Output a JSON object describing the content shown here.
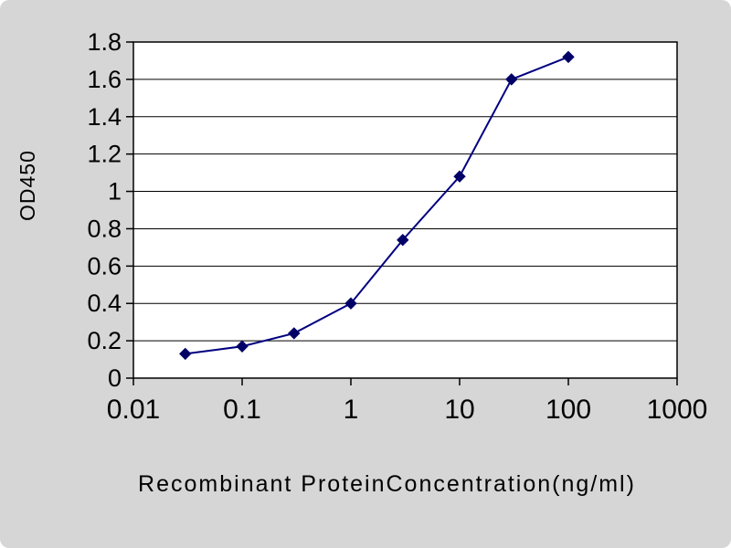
{
  "chart_data": {
    "type": "line",
    "title": "",
    "xlabel": "Recombinant ProteinConcentration(ng/ml)",
    "ylabel": "OD450",
    "x_scale": "log",
    "x": [
      0.03,
      0.1,
      0.3,
      1,
      3,
      10,
      30,
      100
    ],
    "series": [
      {
        "name": "OD450",
        "values": [
          0.13,
          0.17,
          0.24,
          0.4,
          0.74,
          1.08,
          1.6,
          1.72
        ]
      }
    ],
    "x_ticks": [
      0.01,
      0.1,
      1,
      10,
      100,
      1000
    ],
    "x_tick_labels": [
      "0.01",
      "0.1",
      "1",
      "10",
      "100",
      "1000"
    ],
    "y_ticks": [
      0,
      0.2,
      0.4,
      0.6,
      0.8,
      1,
      1.2,
      1.4,
      1.6,
      1.8
    ],
    "y_tick_labels": [
      "0",
      "0.2",
      "0.4",
      "0.6",
      "0.8",
      "1",
      "1.2",
      "1.4",
      "1.6",
      "1.8"
    ],
    "xlim": [
      0.01,
      1000
    ],
    "ylim": [
      0,
      1.8
    ],
    "grid": "horizontal",
    "legend": "none",
    "marker": "diamond",
    "colors": {
      "line": "#000080",
      "marker": "#000066",
      "grid": "#000000",
      "axis": "#000000",
      "text": "#000000",
      "plot_bg": "#ffffff",
      "page_bg": "#d6d6d6"
    }
  }
}
